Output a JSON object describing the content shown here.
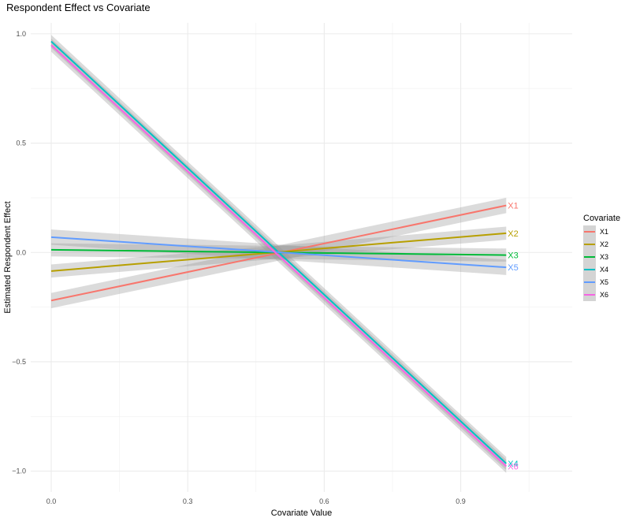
{
  "chart_data": {
    "type": "line",
    "title": "Respondent Effect vs Covariate",
    "xlabel": "Covariate Value",
    "ylabel": "Estimated Respondent Effect",
    "xlim": [
      -0.045,
      1.145
    ],
    "ylim": [
      -1.095,
      1.05
    ],
    "x_ticks": [
      0.0,
      0.3,
      0.6,
      0.9
    ],
    "x_tick_labels": [
      "0.0",
      "0.3",
      "0.6",
      "0.9"
    ],
    "y_ticks": [
      1.0,
      0.5,
      0.0,
      -0.5,
      -1.0
    ],
    "y_tick_labels": [
      "1.0",
      "0.5",
      "0.0",
      "−0.5",
      "−1.0"
    ],
    "grid": true,
    "legend": {
      "title": "Covariate",
      "position": "right"
    },
    "confidence_band": true,
    "series": [
      {
        "name": "X1",
        "color": "#F8766D",
        "x": [
          0,
          1
        ],
        "y": [
          -0.22,
          0.215
        ],
        "band_halfwidth": [
          0.035,
          0.035
        ]
      },
      {
        "name": "X2",
        "color": "#B79F00",
        "x": [
          0,
          1
        ],
        "y": [
          -0.085,
          0.088
        ],
        "band_halfwidth": [
          0.03,
          0.03
        ]
      },
      {
        "name": "X3",
        "color": "#00BA38",
        "x": [
          0,
          1
        ],
        "y": [
          0.012,
          -0.012
        ],
        "band_halfwidth": [
          0.03,
          0.03
        ]
      },
      {
        "name": "X4",
        "color": "#00BFC4",
        "x": [
          0,
          1
        ],
        "y": [
          0.965,
          -0.965
        ],
        "band_halfwidth": [
          0.03,
          0.03
        ]
      },
      {
        "name": "X5",
        "color": "#619CFF",
        "x": [
          0,
          1
        ],
        "y": [
          0.07,
          -0.068
        ],
        "band_halfwidth": [
          0.035,
          0.035
        ]
      },
      {
        "name": "X6",
        "color": "#F564E3",
        "x": [
          0,
          1
        ],
        "y": [
          0.948,
          -0.978
        ],
        "band_halfwidth": [
          0.03,
          0.03
        ]
      }
    ],
    "end_labels": [
      "X1",
      "X2",
      "X3",
      "X4",
      "X5",
      "X6"
    ]
  }
}
